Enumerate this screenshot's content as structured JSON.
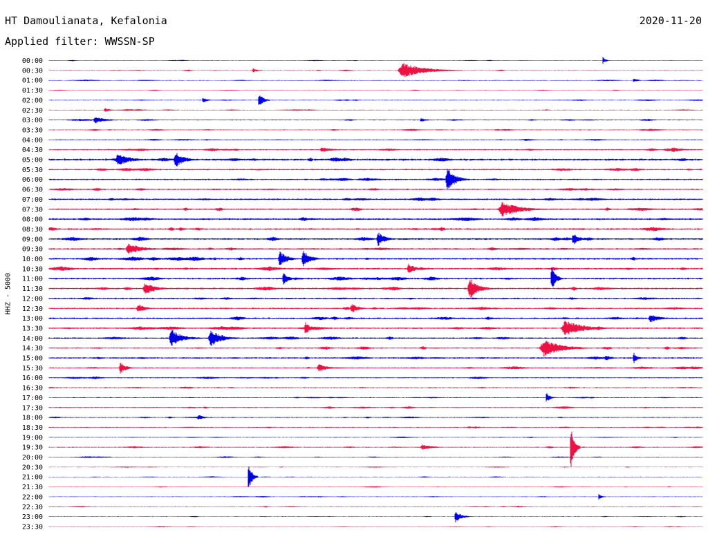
{
  "header": {
    "station": "HT Damoulianata, Kefalonia",
    "date": "2020-11-20",
    "filter": "Applied filter: WWSSN-SP"
  },
  "chart_data": {
    "type": "line",
    "subtype": "helicorder",
    "ylabel": "HHZ - 5000",
    "colors": [
      "#0000e6",
      "#ee1144"
    ],
    "time_labels": [
      "00:00",
      "00:30",
      "01:00",
      "01:30",
      "02:00",
      "02:30",
      "03:00",
      "03:30",
      "04:00",
      "04:30",
      "05:00",
      "05:30",
      "06:00",
      "06:30",
      "07:00",
      "07:30",
      "08:00",
      "08:30",
      "09:00",
      "09:30",
      "10:00",
      "10:30",
      "11:00",
      "11:30",
      "12:00",
      "12:30",
      "13:00",
      "13:30",
      "14:00",
      "14:30",
      "15:00",
      "15:30",
      "16:00",
      "16:30",
      "17:00",
      "17:30",
      "18:00",
      "18:30",
      "19:00",
      "19:30",
      "20:00",
      "20:30",
      "21:00",
      "21:30",
      "22:00",
      "22:30",
      "23:00",
      "23:30"
    ],
    "trace_noise": [
      0.3,
      0.4,
      0.3,
      0.3,
      0.4,
      0.4,
      0.5,
      0.5,
      0.5,
      0.7,
      1.2,
      0.8,
      0.8,
      0.8,
      0.9,
      0.9,
      1.0,
      1.0,
      1.0,
      0.9,
      1.0,
      1.0,
      1.0,
      1.0,
      0.9,
      0.8,
      0.9,
      0.9,
      0.8,
      0.8,
      0.8,
      0.7,
      0.6,
      0.6,
      0.5,
      0.6,
      0.5,
      0.5,
      0.4,
      0.5,
      0.4,
      0.3,
      0.3,
      0.3,
      0.3,
      0.4,
      0.3,
      0.3
    ],
    "events": [
      {
        "trace": 0,
        "x_min": 25.4,
        "amp": 5,
        "dur": 0.4
      },
      {
        "trace": 1,
        "x_min": 16.0,
        "amp": 11,
        "dur": 3.0
      },
      {
        "trace": 1,
        "x_min": 9.3,
        "amp": 3,
        "dur": 0.8
      },
      {
        "trace": 2,
        "x_min": 26.8,
        "amp": 3,
        "dur": 0.6
      },
      {
        "trace": 4,
        "x_min": 9.6,
        "amp": 11,
        "dur": 0.6
      },
      {
        "trace": 4,
        "x_min": 7.0,
        "amp": 4,
        "dur": 0.6
      },
      {
        "trace": 5,
        "x_min": 2.5,
        "amp": 3,
        "dur": 0.8
      },
      {
        "trace": 6,
        "x_min": 2.0,
        "amp": 5,
        "dur": 1.5
      },
      {
        "trace": 6,
        "x_min": 17.0,
        "amp": 3,
        "dur": 0.8
      },
      {
        "trace": 9,
        "x_min": 12.4,
        "amp": 4,
        "dur": 1.5
      },
      {
        "trace": 9,
        "x_min": 28.5,
        "amp": 4,
        "dur": 1.5
      },
      {
        "trace": 10,
        "x_min": 3.0,
        "amp": 9,
        "dur": 1.8
      },
      {
        "trace": 10,
        "x_min": 5.7,
        "amp": 12,
        "dur": 1.2
      },
      {
        "trace": 12,
        "x_min": 18.2,
        "amp": 17,
        "dur": 1.2
      },
      {
        "trace": 15,
        "x_min": 20.6,
        "amp": 11,
        "dur": 2.5
      },
      {
        "trace": 18,
        "x_min": 15.0,
        "amp": 11,
        "dur": 1.0
      },
      {
        "trace": 18,
        "x_min": 24.0,
        "amp": 10,
        "dur": 0.8
      },
      {
        "trace": 19,
        "x_min": 3.5,
        "amp": 8,
        "dur": 2.0
      },
      {
        "trace": 20,
        "x_min": 10.5,
        "amp": 12,
        "dur": 1.0
      },
      {
        "trace": 20,
        "x_min": 11.6,
        "amp": 13,
        "dur": 1.0
      },
      {
        "trace": 21,
        "x_min": 16.4,
        "amp": 8,
        "dur": 1.0
      },
      {
        "trace": 22,
        "x_min": 10.7,
        "amp": 9,
        "dur": 0.8
      },
      {
        "trace": 22,
        "x_min": 23.0,
        "amp": 20,
        "dur": 0.6
      },
      {
        "trace": 23,
        "x_min": 4.3,
        "amp": 9,
        "dur": 1.5
      },
      {
        "trace": 23,
        "x_min": 19.2,
        "amp": 17,
        "dur": 1.2
      },
      {
        "trace": 25,
        "x_min": 4.0,
        "amp": 7,
        "dur": 1.0
      },
      {
        "trace": 25,
        "x_min": 13.8,
        "amp": 7,
        "dur": 1.0
      },
      {
        "trace": 26,
        "x_min": 27.5,
        "amp": 6,
        "dur": 1.5
      },
      {
        "trace": 27,
        "x_min": 11.7,
        "amp": 11,
        "dur": 0.6
      },
      {
        "trace": 27,
        "x_min": 23.5,
        "amp": 12,
        "dur": 2.5
      },
      {
        "trace": 28,
        "x_min": 5.5,
        "amp": 13,
        "dur": 1.5
      },
      {
        "trace": 28,
        "x_min": 7.3,
        "amp": 13,
        "dur": 1.5
      },
      {
        "trace": 29,
        "x_min": 22.5,
        "amp": 13,
        "dur": 2.5
      },
      {
        "trace": 30,
        "x_min": 26.8,
        "amp": 9,
        "dur": 0.5
      },
      {
        "trace": 30,
        "x_min": 25.5,
        "amp": 5,
        "dur": 0.8
      },
      {
        "trace": 31,
        "x_min": 3.2,
        "amp": 9,
        "dur": 0.8
      },
      {
        "trace": 31,
        "x_min": 12.3,
        "amp": 6,
        "dur": 1.2
      },
      {
        "trace": 34,
        "x_min": 22.8,
        "amp": 8,
        "dur": 0.5
      },
      {
        "trace": 36,
        "x_min": 6.8,
        "amp": 4,
        "dur": 0.8
      },
      {
        "trace": 39,
        "x_min": 23.9,
        "amp": 36,
        "dur": 0.5
      },
      {
        "trace": 39,
        "x_min": 17.0,
        "amp": 4,
        "dur": 1.5
      },
      {
        "trace": 42,
        "x_min": 9.1,
        "amp": 22,
        "dur": 0.5
      },
      {
        "trace": 44,
        "x_min": 25.2,
        "amp": 5,
        "dur": 0.4
      },
      {
        "trace": 46,
        "x_min": 18.6,
        "amp": 9,
        "dur": 0.8
      }
    ]
  }
}
